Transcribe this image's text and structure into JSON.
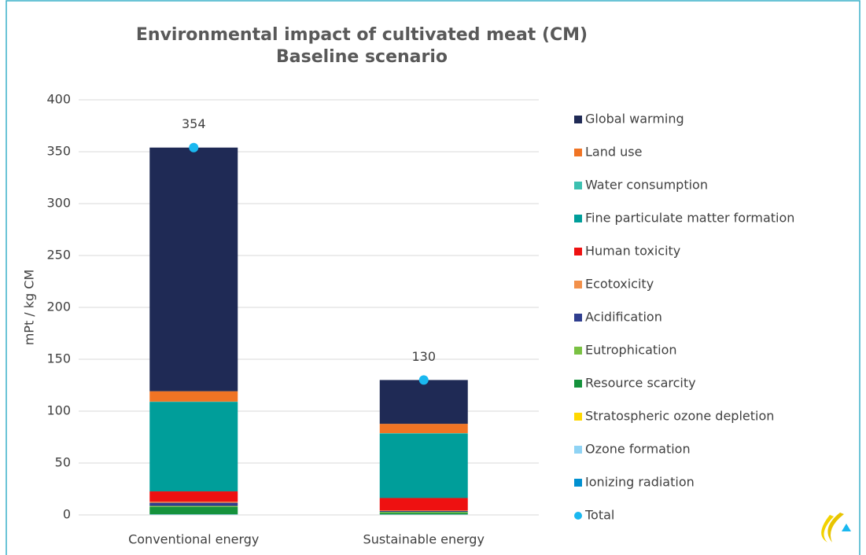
{
  "chart_data": {
    "type": "stacked_bar",
    "title": [
      "Environmental impact of cultivated meat (CM)",
      "Baseline scenario"
    ],
    "y_label": "mPt / kg CM",
    "categories": [
      "Conventional energy",
      "Sustainable energy"
    ],
    "ylim": [
      0,
      400
    ],
    "yticks": [
      0,
      50,
      100,
      150,
      200,
      250,
      300,
      350,
      400
    ],
    "grid": true,
    "legend": "right",
    "series": [
      {
        "name": "Ionizing radiation",
        "color": "#0090d0",
        "values": [
          0.3,
          0.2
        ]
      },
      {
        "name": "Ozone formation",
        "color": "#8fd3f4",
        "values": [
          0.3,
          0.2
        ]
      },
      {
        "name": "Stratospheric ozone depletion",
        "color": "#ffd800",
        "values": [
          0.1,
          0.1
        ]
      },
      {
        "name": "Resource scarcity",
        "color": "#15923c",
        "values": [
          7,
          1.5
        ]
      },
      {
        "name": "Eutrophication",
        "color": "#7ac143",
        "values": [
          1,
          1
        ]
      },
      {
        "name": "Acidification",
        "color": "#2f3e8f",
        "values": [
          3,
          0.8
        ]
      },
      {
        "name": "Ecotoxicity",
        "color": "#f2904a",
        "values": [
          1,
          0.5
        ]
      },
      {
        "name": "Human toxicity",
        "color": "#ee1111",
        "values": [
          10,
          12
        ]
      },
      {
        "name": "Fine particulate matter formation",
        "color": "#009e9a",
        "values": [
          86,
          62
        ]
      },
      {
        "name": "Water consumption",
        "color": "#3cc0b0",
        "values": [
          0.5,
          0.5
        ]
      },
      {
        "name": "Land use",
        "color": "#f07424",
        "values": [
          10,
          9
        ]
      },
      {
        "name": "Global warming",
        "color": "#1f2a55",
        "values": [
          234.8,
          42.2
        ]
      }
    ],
    "total": {
      "name": "Total",
      "color": "#1ab8f0",
      "values": [
        354,
        130
      ]
    }
  }
}
